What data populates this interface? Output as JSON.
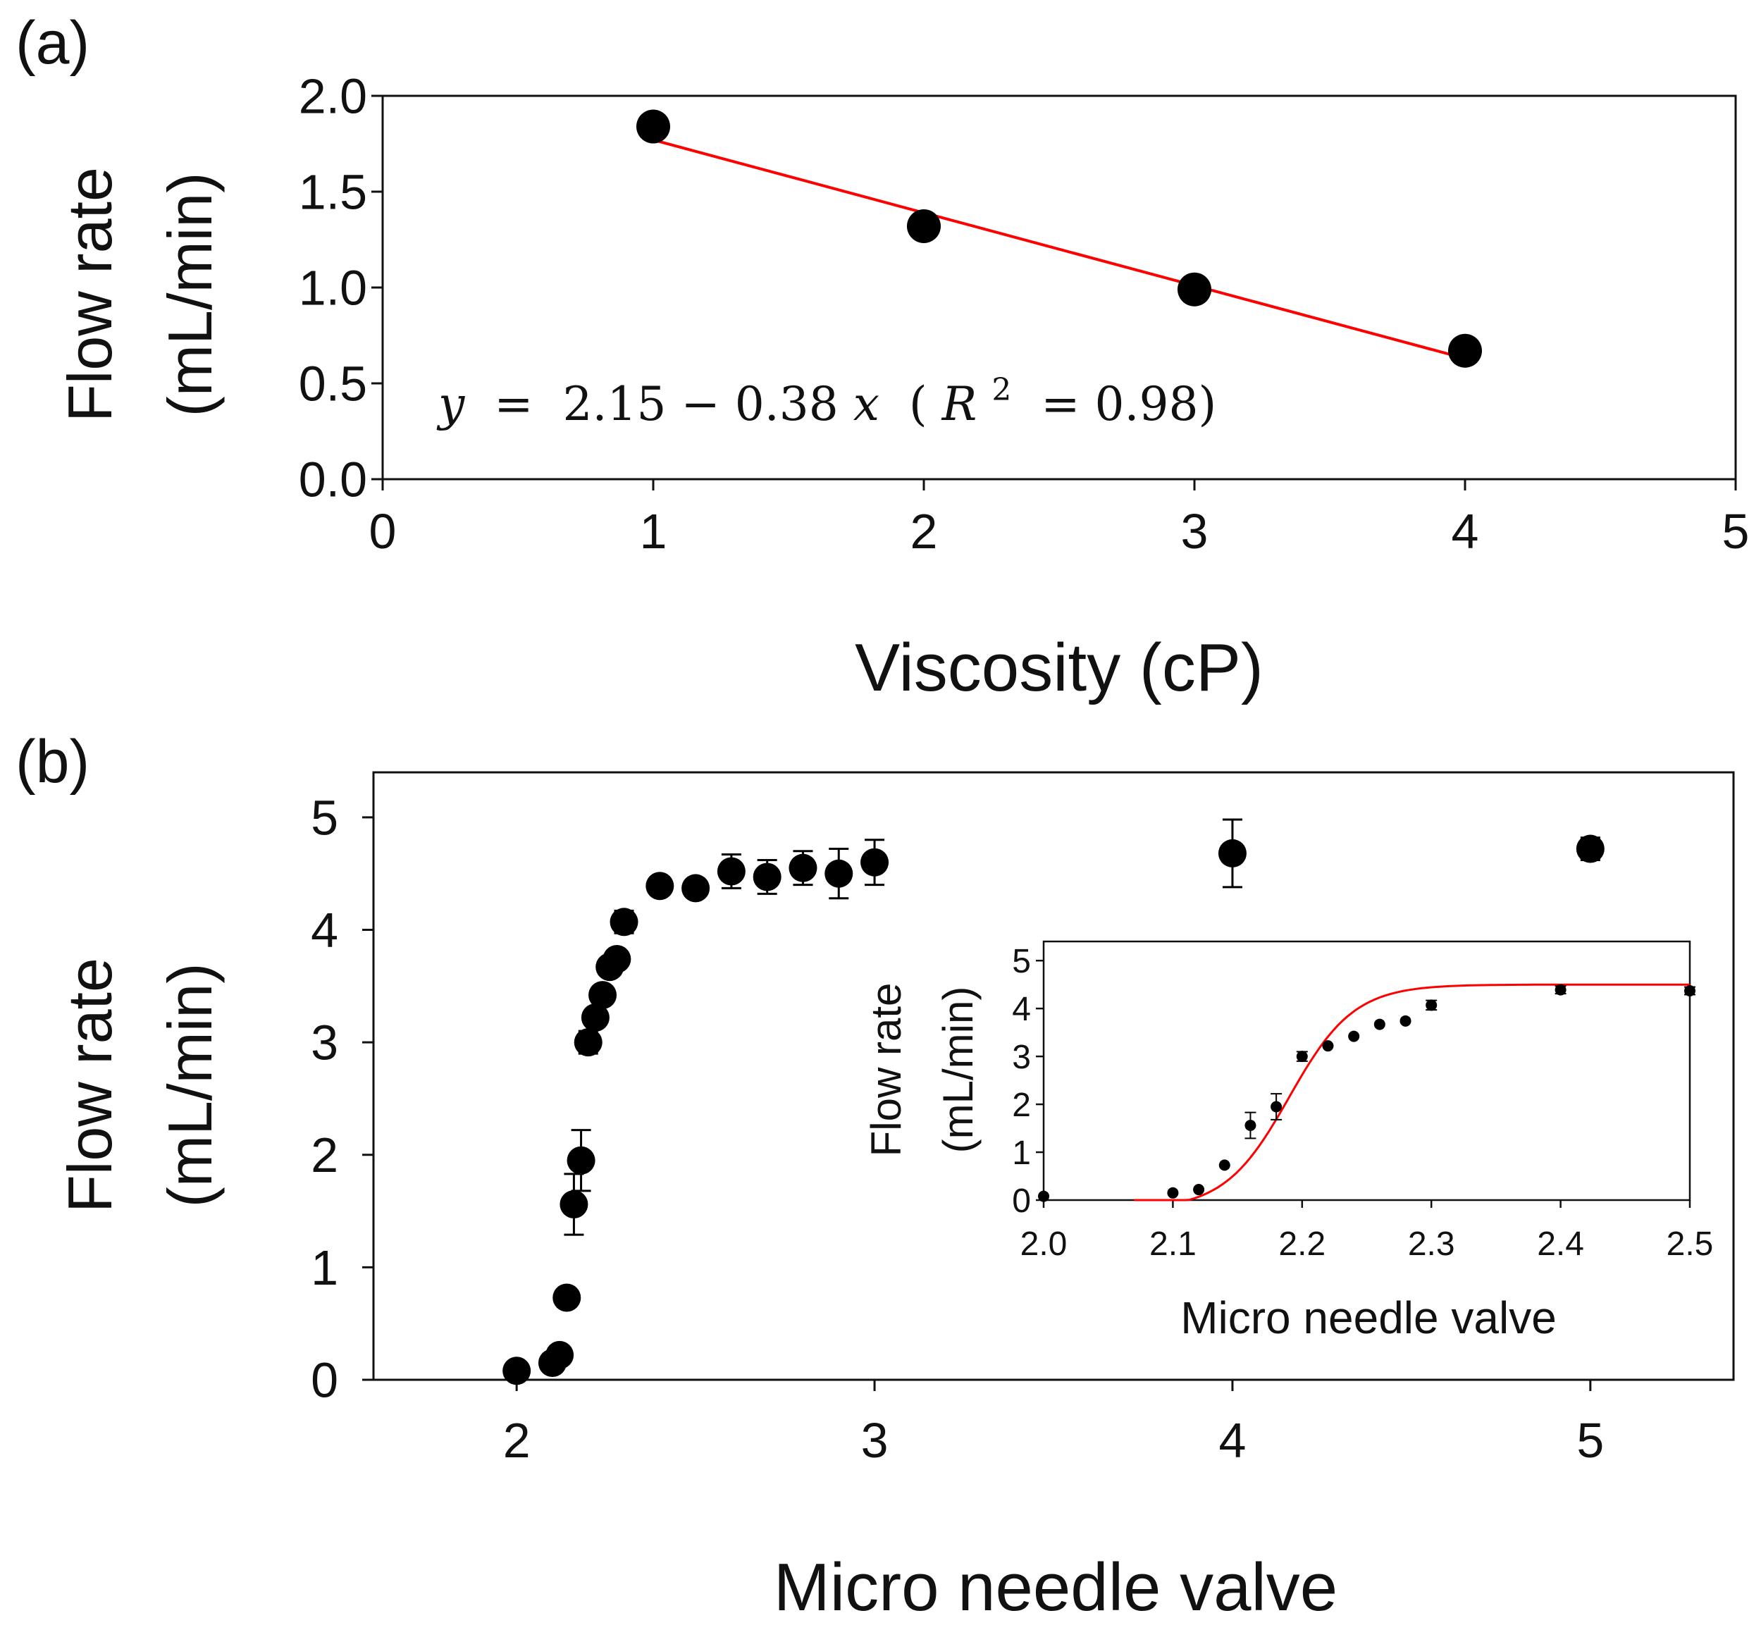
{
  "colors": {
    "marker": "#000000",
    "fit_line": "#ff0000",
    "axis": "#111111"
  },
  "chart_data": [
    {
      "panel_label": "(a)",
      "type": "scatter",
      "title": "",
      "xlabel": "Viscosity (cP)",
      "ylabel_line1": "Flow rate",
      "ylabel_line2": "(mL/min)",
      "xlim": [
        0,
        5
      ],
      "ylim": [
        0,
        2
      ],
      "xticks": [
        0,
        1,
        2,
        3,
        4,
        5
      ],
      "yticks": [
        0,
        0.5,
        1,
        1.5,
        2
      ],
      "xtick_labels": [
        "0",
        "1",
        "2",
        "3",
        "4",
        "5"
      ],
      "ytick_labels": [
        "0.0",
        "0.5",
        "1.0",
        "1.5",
        "2.0"
      ],
      "grid": false,
      "points": {
        "x": [
          1,
          2,
          3,
          4
        ],
        "y": [
          1.84,
          1.32,
          0.99,
          0.67
        ]
      },
      "fit": {
        "type": "linear",
        "intercept": 2.15,
        "slope": -0.38,
        "x_range": [
          1,
          4
        ]
      },
      "equation": {
        "y_var": "y",
        "eq_sign": " = ",
        "rhs": "2.15 − 0.38",
        "x_var": "x",
        "open_paren": " (",
        "r_var": "R",
        "r_sup": "2",
        "r_value": " = 0.98)"
      }
    },
    {
      "panel_label": "(b)",
      "type": "scatter",
      "title": "",
      "xlabel": "Micro needle valve",
      "ylabel_line1": "Flow rate",
      "ylabel_line2": "(mL/min)",
      "xlim": [
        1.6,
        5.4
      ],
      "ylim": [
        0,
        5.4
      ],
      "xticks": [
        2,
        3,
        4,
        5
      ],
      "yticks": [
        0,
        1,
        2,
        3,
        4,
        5
      ],
      "xtick_labels": [
        "2",
        "3",
        "4",
        "5"
      ],
      "ytick_labels": [
        "0",
        "1",
        "2",
        "3",
        "4",
        "5"
      ],
      "grid": false,
      "points": {
        "x": [
          2.0,
          2.1,
          2.12,
          2.14,
          2.16,
          2.18,
          2.2,
          2.22,
          2.24,
          2.26,
          2.28,
          2.3,
          2.4,
          2.5,
          2.6,
          2.7,
          2.8,
          2.9,
          3.0,
          4.0,
          5.0
        ],
        "y": [
          0.08,
          0.15,
          0.22,
          0.73,
          1.56,
          1.95,
          3.0,
          3.22,
          3.42,
          3.67,
          3.74,
          4.07,
          4.39,
          4.37,
          4.52,
          4.47,
          4.55,
          4.5,
          4.6,
          4.68,
          4.72
        ],
        "err": [
          0.0,
          0.0,
          0.0,
          0.0,
          0.27,
          0.27,
          0.1,
          0.0,
          0.0,
          0.0,
          0.0,
          0.1,
          0.08,
          0.08,
          0.15,
          0.15,
          0.15,
          0.22,
          0.2,
          0.3,
          0.1
        ]
      },
      "inset": {
        "type": "scatter",
        "xlabel": "Micro needle valve",
        "ylabel_line1": "Flow rate",
        "ylabel_line2": "(mL/min)",
        "xlim": [
          2.0,
          2.5
        ],
        "ylim": [
          0,
          5.4
        ],
        "xticks": [
          2.0,
          2.1,
          2.2,
          2.3,
          2.4,
          2.5
        ],
        "yticks": [
          0,
          1,
          2,
          3,
          4,
          5
        ],
        "xtick_labels": [
          "2.0",
          "2.1",
          "2.2",
          "2.3",
          "2.4",
          "2.5"
        ],
        "ytick_labels": [
          "0",
          "1",
          "2",
          "3",
          "4",
          "5"
        ],
        "points": {
          "x": [
            2.0,
            2.1,
            2.12,
            2.14,
            2.16,
            2.18,
            2.2,
            2.22,
            2.24,
            2.26,
            2.28,
            2.3,
            2.4,
            2.5
          ],
          "y": [
            0.08,
            0.15,
            0.22,
            0.73,
            1.56,
            1.95,
            3.0,
            3.22,
            3.42,
            3.67,
            3.74,
            4.07,
            4.39,
            4.37
          ],
          "err": [
            0.0,
            0.0,
            0.0,
            0.0,
            0.27,
            0.27,
            0.1,
            0.0,
            0.0,
            0.0,
            0.0,
            0.1,
            0.08,
            0.08
          ]
        },
        "fit": {
          "type": "sigmoid",
          "upper": 4.5,
          "lower": -0.2,
          "center": 2.19,
          "width": 0.025,
          "x_range": [
            2.07,
            2.5
          ]
        }
      }
    }
  ]
}
